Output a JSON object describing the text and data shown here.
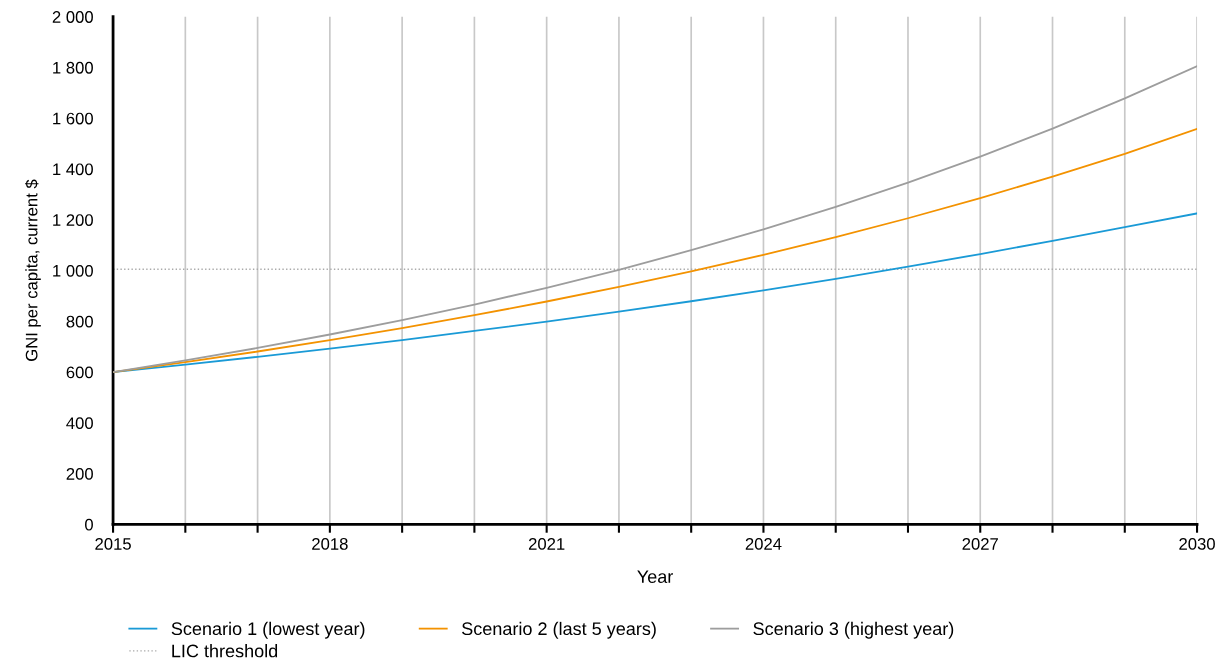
{
  "chart_data": {
    "type": "line",
    "xlabel": "Year",
    "ylabel": "GNI per capita, current $",
    "x": [
      2015,
      2016,
      2017,
      2018,
      2019,
      2020,
      2021,
      2022,
      2023,
      2024,
      2025,
      2026,
      2027,
      2028,
      2029,
      2030
    ],
    "series": [
      {
        "name": "Scenario 1 (lowest year)",
        "color": "#1a9ad6",
        "values": [
          600,
          629,
          660,
          692,
          726,
          762,
          799,
          838,
          879,
          922,
          967,
          1015,
          1065,
          1117,
          1171,
          1225
        ]
      },
      {
        "name": "Scenario 2 (last 5 years)",
        "color": "#f39200",
        "values": [
          600,
          639,
          681,
          726,
          773,
          824,
          878,
          936,
          997,
          1062,
          1132,
          1206,
          1285,
          1370,
          1460,
          1558
        ]
      },
      {
        "name": "Scenario 3 (highest year)",
        "color": "#9d9d9d",
        "values": [
          600,
          646,
          695,
          748,
          805,
          866,
          932,
          1003,
          1080,
          1162,
          1251,
          1346,
          1449,
          1559,
          1678,
          1805
        ]
      }
    ],
    "ref_lines": [
      {
        "axis": "y",
        "value": 1005,
        "label": "LIC threshold",
        "color": "#aaaaaa",
        "line_style": "dotted"
      }
    ],
    "xlim": [
      2015,
      2030
    ],
    "xticks": [
      2015,
      {
        "value": 2016,
        "label": null
      },
      {
        "value": 2017,
        "label": null
      },
      2018,
      {
        "value": 2019,
        "label": null
      },
      {
        "value": 2020,
        "label": null
      },
      2021,
      {
        "value": 2022,
        "label": null
      },
      {
        "value": 2023,
        "label": null
      },
      2024,
      {
        "value": 2025,
        "label": null
      },
      {
        "value": 2026,
        "label": null
      },
      2027,
      {
        "value": 2028,
        "label": null
      },
      {
        "value": 2029,
        "label": null
      },
      2030
    ],
    "ylim": [
      0,
      2000
    ],
    "yticks": [
      0,
      200,
      400,
      600,
      800,
      {
        "value": 1000,
        "label": "1 000"
      },
      {
        "value": 1200,
        "label": "1 200"
      },
      {
        "value": 1400,
        "label": "1 400"
      },
      {
        "value": 1600,
        "label": "1 600"
      },
      {
        "value": 1800,
        "label": "1 800"
      },
      {
        "value": 2000,
        "label": "2 000"
      }
    ],
    "grid": "x",
    "legend": "bottom",
    "marker": "none",
    "line_style": "solid"
  }
}
